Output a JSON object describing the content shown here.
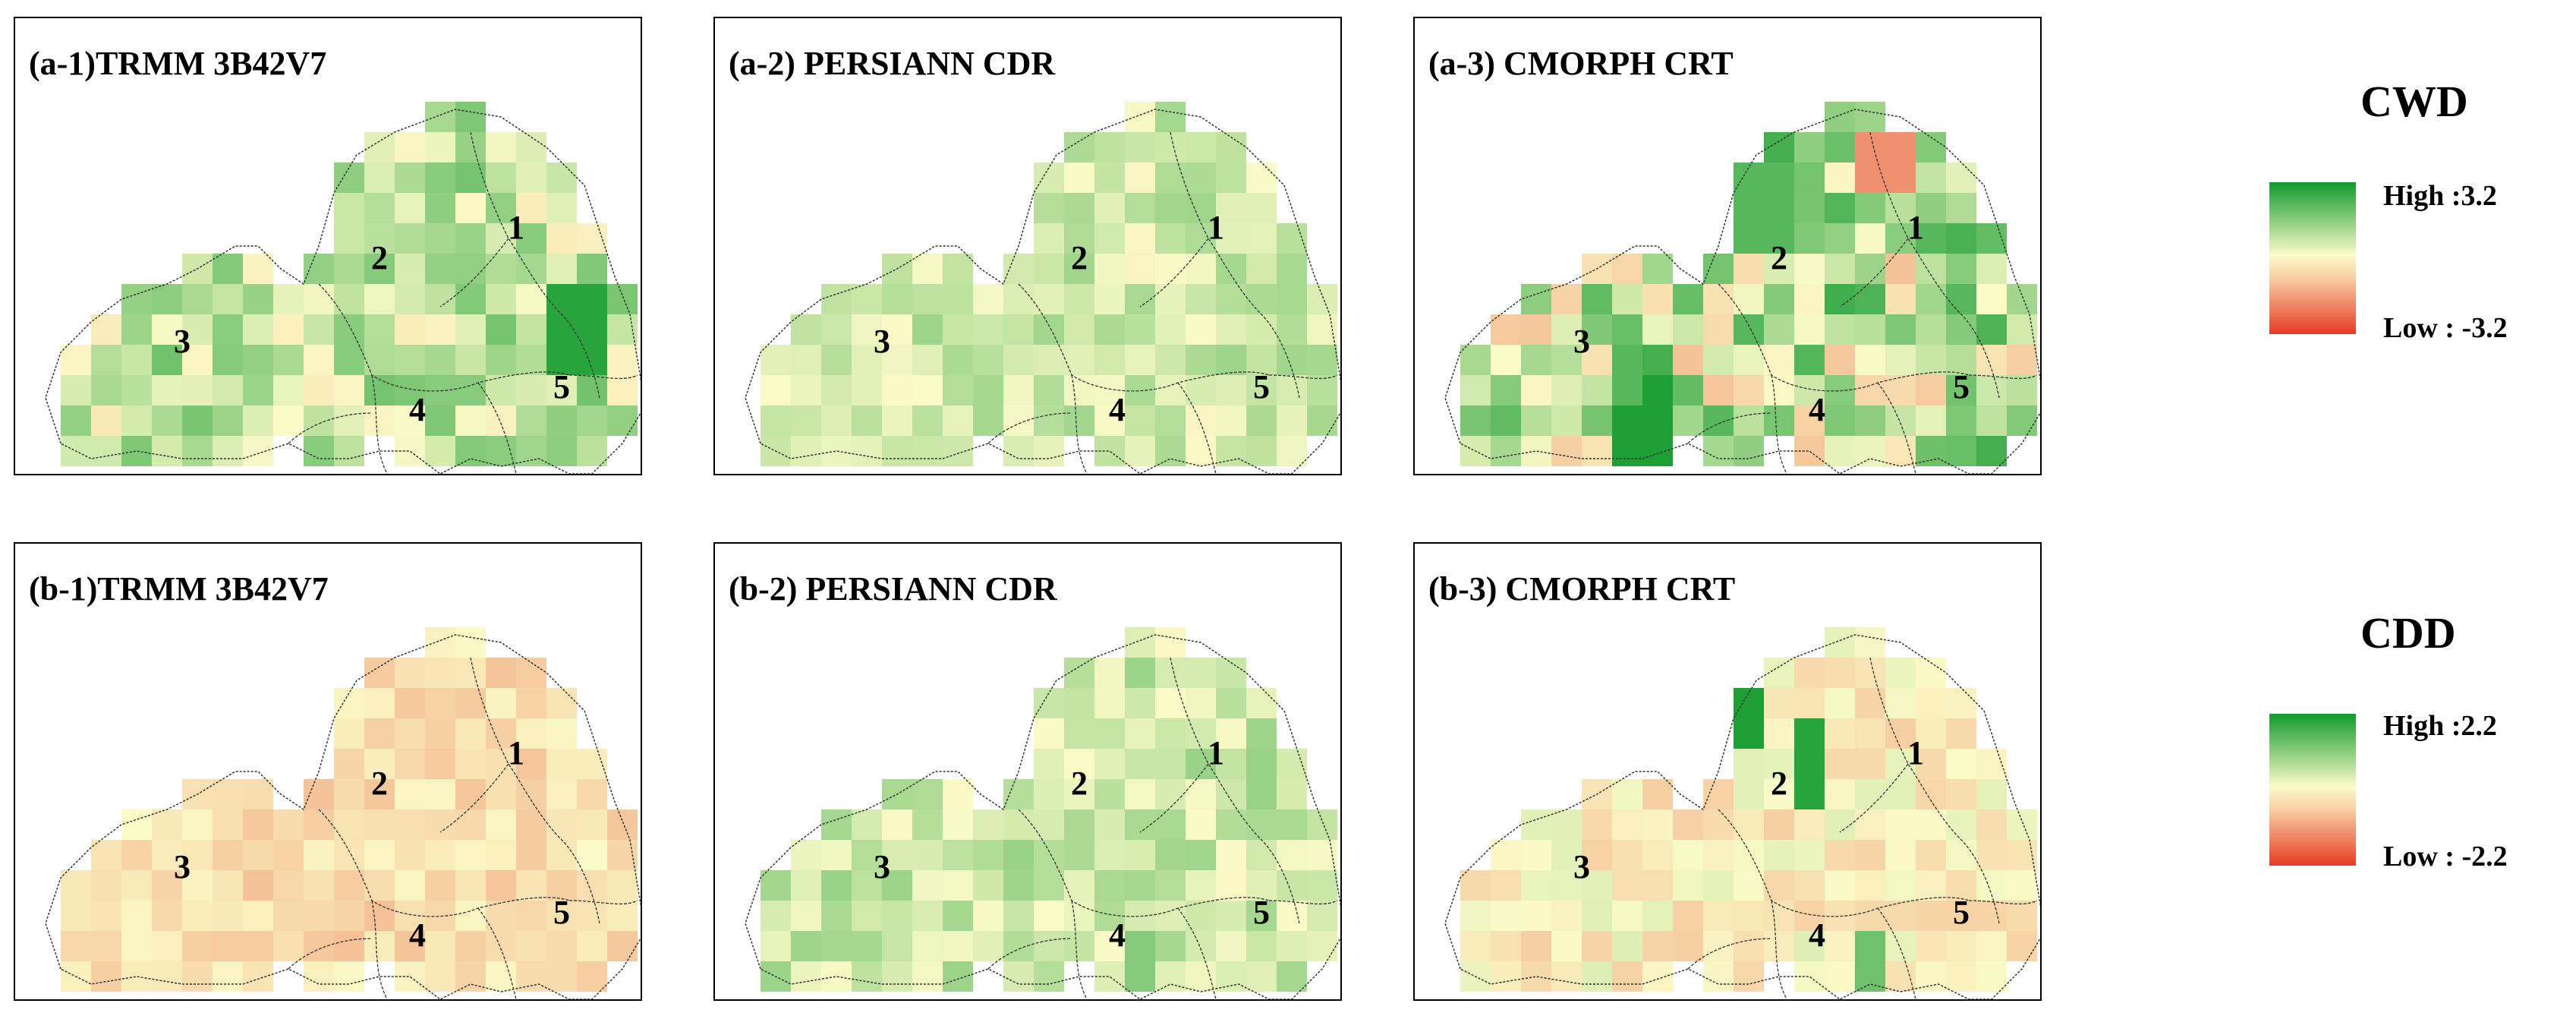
{
  "panels": [
    {
      "title": "(a-1)TRMM 3B42V7",
      "pattern": "a1",
      "regions": [
        "1",
        "2",
        "3",
        "4",
        "5"
      ]
    },
    {
      "title": "(a-2) PERSIANN CDR",
      "pattern": "a2",
      "regions": [
        "1",
        "2",
        "3",
        "4",
        "5"
      ]
    },
    {
      "title": "(a-3) CMORPH CRT",
      "pattern": "a3",
      "regions": [
        "1",
        "2",
        "3",
        "4",
        "5"
      ]
    },
    {
      "title": "(b-1)TRMM 3B42V7",
      "pattern": "b1",
      "regions": [
        "1",
        "2",
        "3",
        "4",
        "5"
      ]
    },
    {
      "title": "(b-2) PERSIANN CDR",
      "pattern": "b2",
      "regions": [
        "1",
        "2",
        "3",
        "4",
        "5"
      ]
    },
    {
      "title": "(b-3) CMORPH CRT",
      "pattern": "b3",
      "regions": [
        "1",
        "2",
        "3",
        "4",
        "5"
      ]
    }
  ],
  "legends": [
    {
      "title": "CWD",
      "high": "High :3.2",
      "low": "Low : -3.2"
    },
    {
      "title": "CDD",
      "high": "High :2.2",
      "low": "Low : -2.2"
    }
  ],
  "colors": {
    "high": "#119a2e",
    "mid": "#fbfbc8",
    "low": "#e63b25",
    "boundary": "#333333",
    "frame": "#000000"
  }
}
